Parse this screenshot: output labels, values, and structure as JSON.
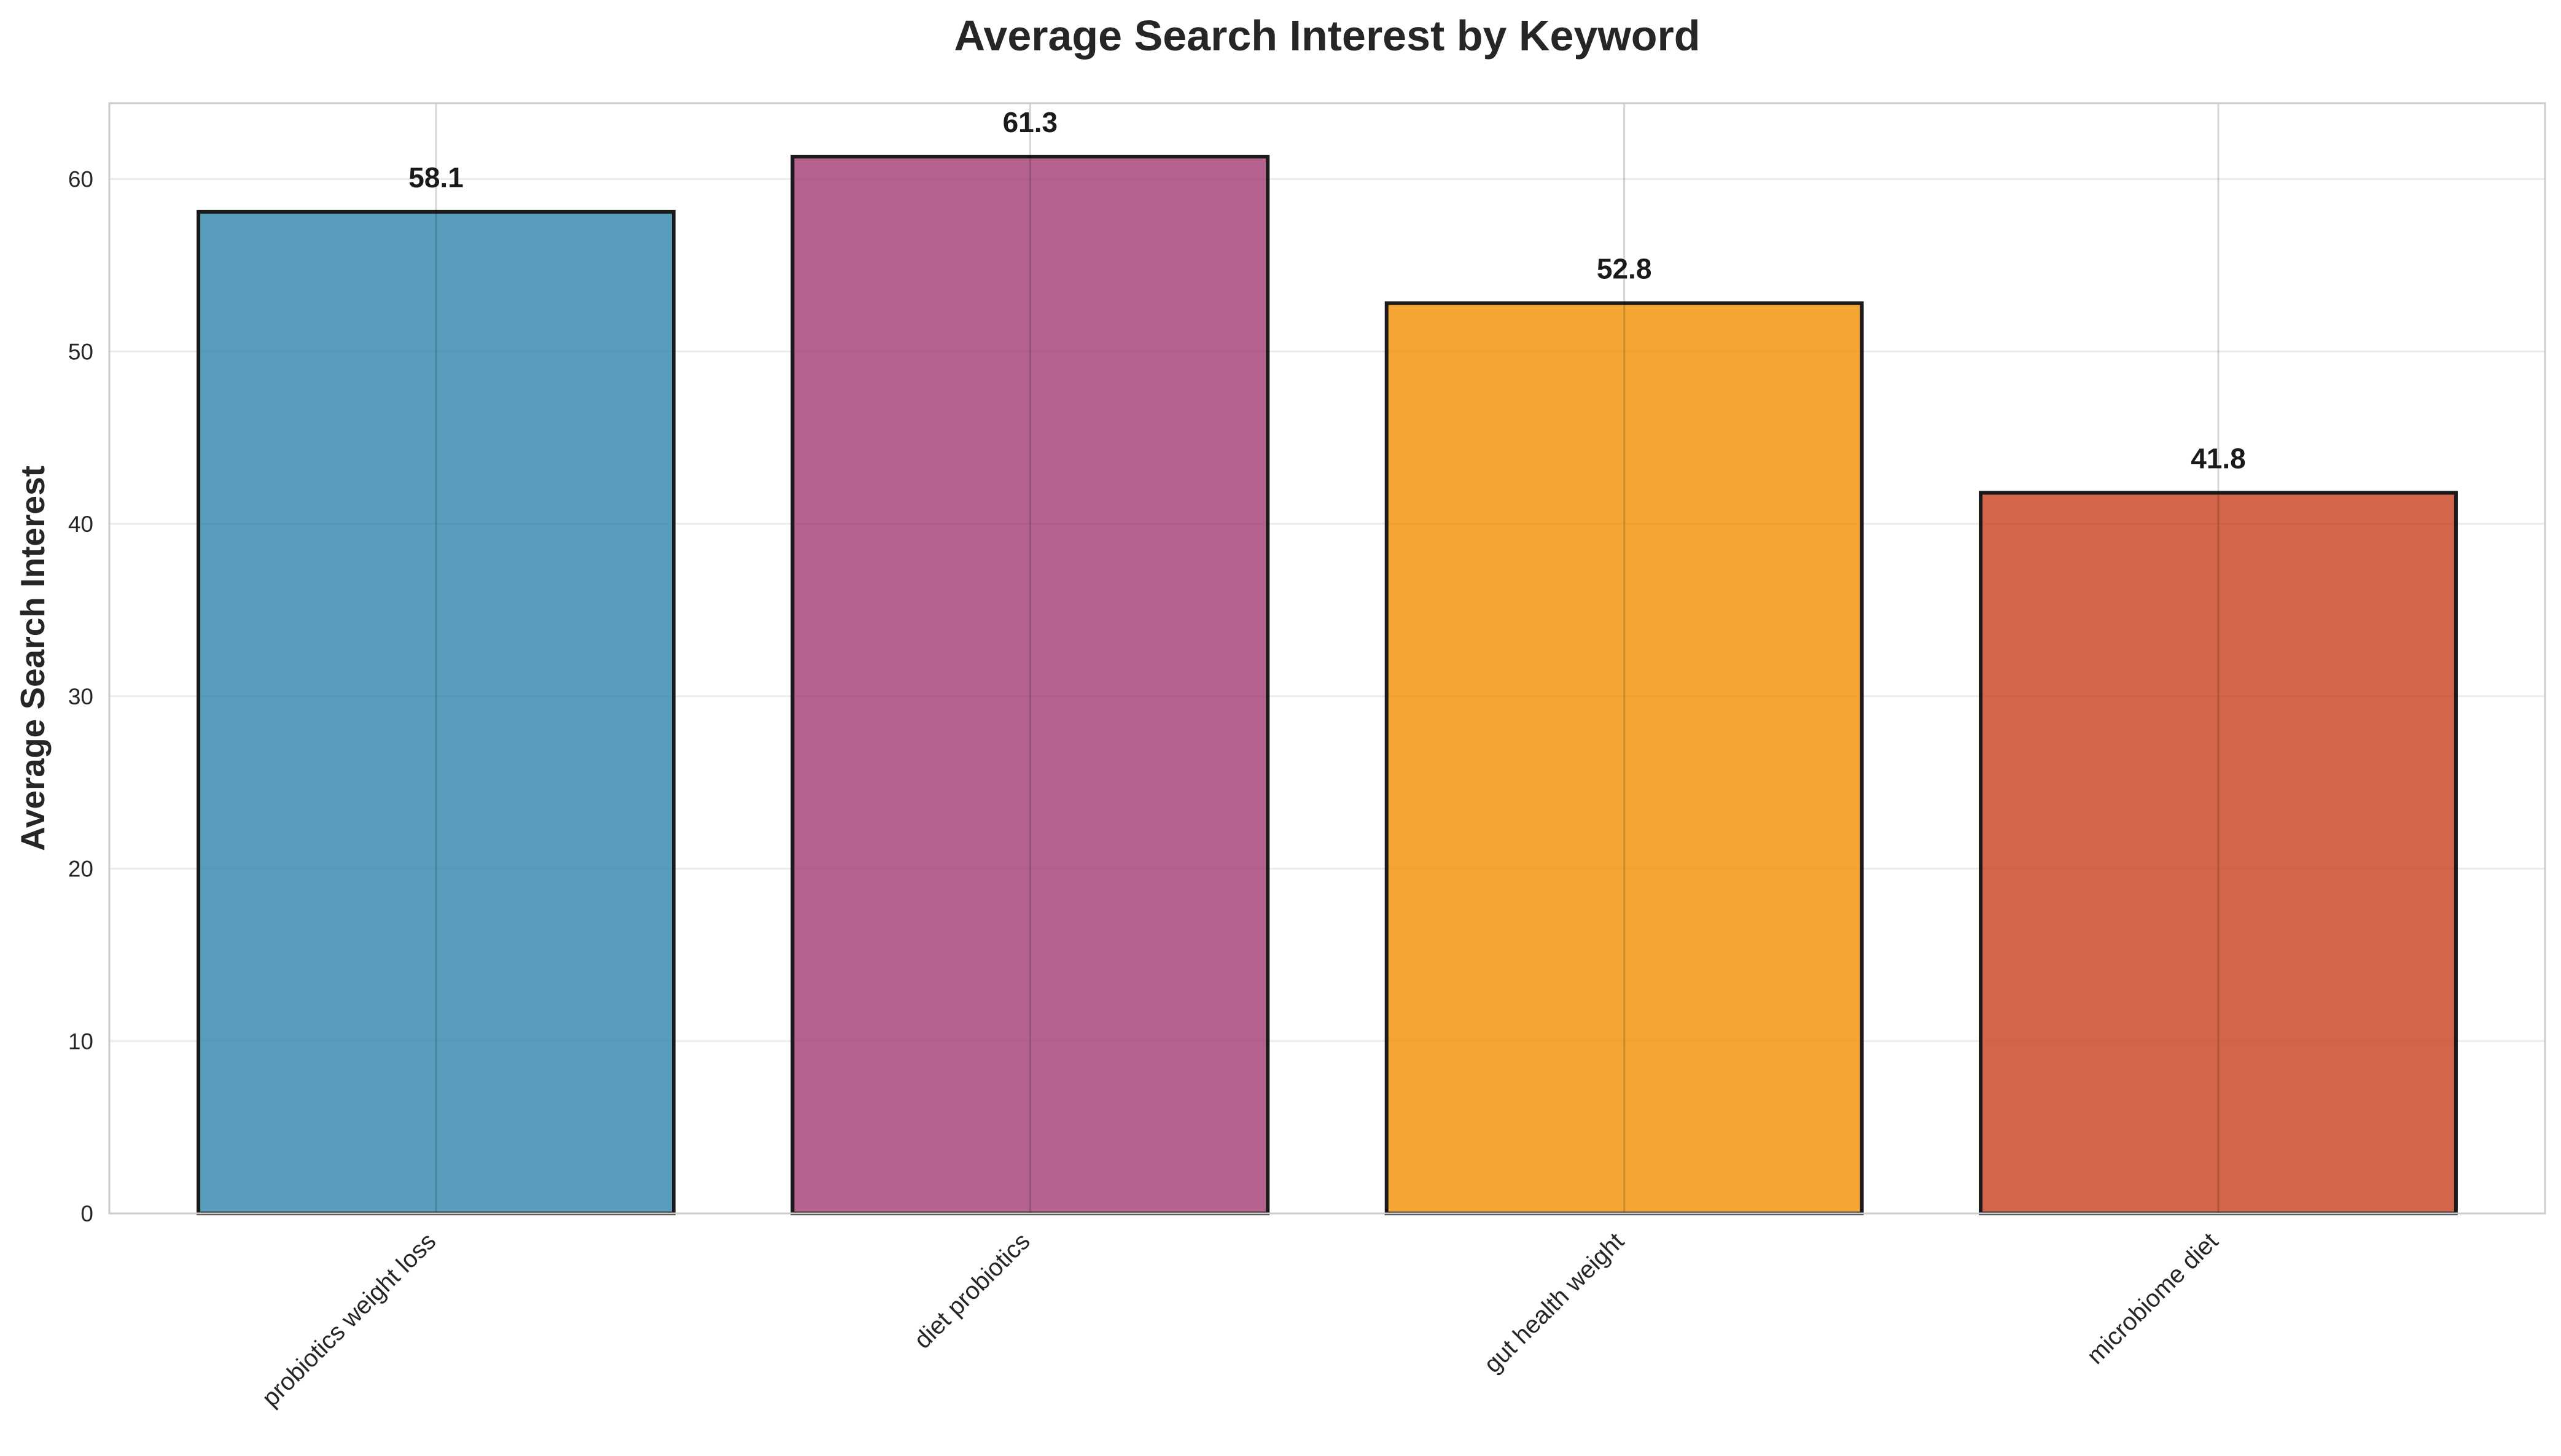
{
  "chart_data": {
    "type": "bar",
    "title": "Average Search Interest by Keyword",
    "xlabel": "",
    "ylabel": "Average Search Interest",
    "categories": [
      "probiotics weight loss",
      "diet probiotics",
      "gut health weight",
      "microbiome diet"
    ],
    "values": [
      58.1,
      61.3,
      52.8,
      41.8
    ],
    "value_labels": [
      "58.1",
      "61.3",
      "52.8",
      "41.8"
    ],
    "colors": [
      "#2E86AB",
      "#A23B72",
      "#F18F01",
      "#C73E1D"
    ],
    "ylim": [
      0,
      64.4
    ],
    "yticks": [
      0,
      10,
      20,
      30,
      40,
      50,
      60
    ],
    "ytick_labels": [
      "0",
      "10",
      "20",
      "30",
      "40",
      "50",
      "60"
    ],
    "grid": true,
    "legend": "none"
  }
}
